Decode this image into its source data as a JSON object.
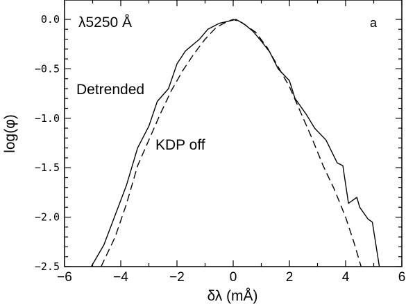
{
  "chart_data": {
    "type": "line",
    "title": "",
    "xlabel": "δλ  (mÅ)",
    "ylabel": "log(φ)",
    "xlim": [
      -6,
      6
    ],
    "ylim": [
      -2.5,
      0.1
    ],
    "x_ticks": [
      -6,
      -4,
      -2,
      0,
      2,
      4,
      6
    ],
    "x_tick_labels": [
      "−6",
      "−4",
      "−2",
      "0",
      "2",
      "4",
      "6"
    ],
    "y_ticks": [
      0.0,
      -0.5,
      -1.0,
      -1.5,
      -2.0,
      -2.5
    ],
    "y_tick_labels": [
      "0.0",
      "−0.5",
      "−1.0",
      "−1.5",
      "−2.0",
      "−2.5"
    ],
    "grid": false,
    "annotations": {
      "wavelength": "λ5250 Å",
      "panel": "a",
      "detrended": "Detrended",
      "kdp_off": "KDP off"
    },
    "series": [
      {
        "style": "solid",
        "points": [
          [
            -5.05,
            -2.5
          ],
          [
            -4.6,
            -2.28
          ],
          [
            -4.2,
            -1.98
          ],
          [
            -3.8,
            -1.68
          ],
          [
            -3.4,
            -1.3
          ],
          [
            -3.0,
            -1.08
          ],
          [
            -2.7,
            -0.83
          ],
          [
            -2.3,
            -0.7
          ],
          [
            -2.0,
            -0.45
          ],
          [
            -1.7,
            -0.32
          ],
          [
            -1.2,
            -0.2
          ],
          [
            -0.9,
            -0.1
          ],
          [
            -0.5,
            -0.04
          ],
          [
            -0.2,
            -0.02
          ],
          [
            0.1,
            0.0
          ],
          [
            0.4,
            -0.05
          ],
          [
            0.7,
            -0.12
          ],
          [
            1.0,
            -0.22
          ],
          [
            1.3,
            -0.33
          ],
          [
            1.6,
            -0.5
          ],
          [
            2.0,
            -0.62
          ],
          [
            2.2,
            -0.8
          ],
          [
            2.6,
            -0.96
          ],
          [
            2.9,
            -1.1
          ],
          [
            3.3,
            -1.22
          ],
          [
            3.7,
            -1.45
          ],
          [
            3.9,
            -1.48
          ],
          [
            4.1,
            -1.86
          ],
          [
            4.4,
            -1.8
          ],
          [
            4.5,
            -1.9
          ],
          [
            4.8,
            -2.02
          ],
          [
            4.95,
            -2.05
          ],
          [
            5.2,
            -2.5
          ]
        ]
      },
      {
        "style": "dashed",
        "points": [
          [
            -4.7,
            -2.5
          ],
          [
            -4.2,
            -2.2
          ],
          [
            -3.8,
            -1.87
          ],
          [
            -3.4,
            -1.48
          ],
          [
            -3.0,
            -1.22
          ],
          [
            -2.6,
            -0.96
          ],
          [
            -2.2,
            -0.72
          ],
          [
            -1.8,
            -0.52
          ],
          [
            -1.4,
            -0.35
          ],
          [
            -1.0,
            -0.2
          ],
          [
            -0.6,
            -0.08
          ],
          [
            -0.2,
            -0.02
          ],
          [
            0.0,
            0.0
          ],
          [
            0.3,
            -0.03
          ],
          [
            0.8,
            -0.13
          ],
          [
            1.2,
            -0.28
          ],
          [
            1.6,
            -0.48
          ],
          [
            2.0,
            -0.68
          ],
          [
            2.4,
            -0.94
          ],
          [
            2.8,
            -1.2
          ],
          [
            3.2,
            -1.48
          ],
          [
            3.6,
            -1.72
          ],
          [
            4.0,
            -2.0
          ],
          [
            4.3,
            -2.26
          ],
          [
            4.55,
            -2.5
          ]
        ]
      }
    ]
  }
}
